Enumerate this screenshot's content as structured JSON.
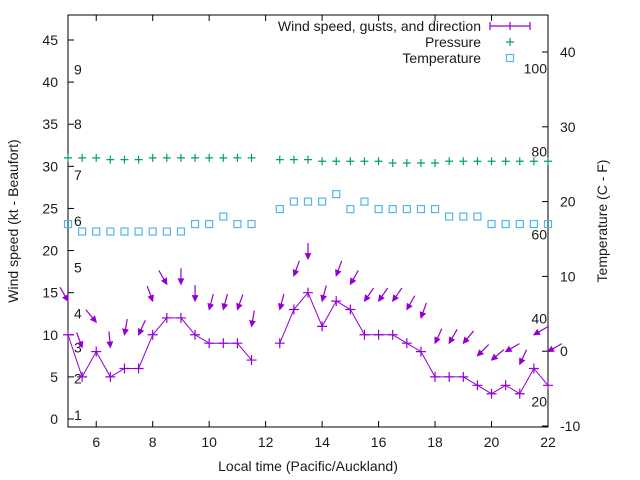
{
  "chart_data": {
    "type": "line",
    "title": "",
    "xlabel": "Local time (Pacific/Auckland)",
    "ylabel": "Wind speed (kt - Beaufort)",
    "y2label": "Temperature (C - F)",
    "xlim": [
      5,
      22
    ],
    "ylim": [
      -1,
      48
    ],
    "y2lim": [
      -10,
      45
    ],
    "x_ticks": [
      6,
      8,
      10,
      12,
      14,
      16,
      18,
      20,
      22
    ],
    "y_ticks": [
      0,
      5,
      10,
      15,
      20,
      25,
      30,
      35,
      40,
      45
    ],
    "y2_ticks": [
      -10,
      0,
      10,
      20,
      30,
      40
    ],
    "beaufort_labels": [
      {
        "label": "1",
        "kt": 0.5
      },
      {
        "label": "2",
        "kt": 4.8
      },
      {
        "label": "3",
        "kt": 8.5
      },
      {
        "label": "4",
        "kt": 12.5
      },
      {
        "label": "5",
        "kt": 18
      },
      {
        "label": "6",
        "kt": 23.5
      },
      {
        "label": "7",
        "kt": 29
      },
      {
        "label": "8",
        "kt": 35
      },
      {
        "label": "9",
        "kt": 41.5
      }
    ],
    "fahrenheit_labels": [
      {
        "label": "20",
        "celsius": -6.7
      },
      {
        "label": "40",
        "celsius": 4.4
      },
      {
        "label": "60",
        "celsius": 15.6
      },
      {
        "label": "80",
        "celsius": 26.7
      },
      {
        "label": "100",
        "celsius": 37.8
      }
    ],
    "legend": {
      "placement": "top-right",
      "entries": [
        {
          "label": "Wind speed, gusts, and direction",
          "marker": "line-plus",
          "color": "#9400d3"
        },
        {
          "label": "Pressure",
          "marker": "plus",
          "color": "#009e73"
        },
        {
          "label": "Temperature",
          "marker": "square",
          "color": "#56b4e9"
        }
      ]
    },
    "grid": false,
    "series": [
      {
        "name": "Wind speed",
        "color": "#9400d3",
        "axis": "left",
        "segments": [
          {
            "x": [
              5,
              5.5,
              6,
              6.5,
              7,
              7.5,
              8,
              8.5,
              9,
              9.5,
              10,
              10.5,
              11,
              11.5
            ],
            "y": [
              10,
              5,
              8,
              5,
              6,
              6,
              10,
              12,
              12,
              10,
              9,
              9,
              9,
              7
            ]
          },
          {
            "x": [
              12.5,
              13,
              13.5,
              14,
              14.5,
              15,
              15.5,
              16,
              16.5,
              17,
              17.5,
              18,
              18.5,
              19,
              19.5,
              20,
              20.5,
              21,
              21.5,
              22
            ],
            "y": [
              9,
              13,
              15,
              11,
              14,
              13,
              10,
              10,
              10,
              9,
              8,
              5,
              5,
              5,
              4,
              3,
              4,
              3,
              6,
              4
            ]
          }
        ]
      },
      {
        "name": "Gusts (direction arrows)",
        "color": "#9400d3",
        "axis": "left",
        "x": [
          5,
          5.5,
          6,
          6.5,
          7,
          7.5,
          8,
          8.5,
          9,
          9.5,
          10,
          10.5,
          11,
          11.5,
          12.5,
          13,
          13.5,
          14,
          14.5,
          15,
          15.5,
          16,
          16.5,
          17,
          17.5,
          18,
          18.5,
          19,
          19.5,
          20,
          20.5,
          21,
          21.5,
          22
        ],
        "y": [
          14,
          8.5,
          11.5,
          8.5,
          10,
          10,
          14,
          16,
          16,
          14,
          13,
          13,
          13,
          11,
          13,
          17,
          19,
          14,
          17,
          16,
          14,
          14,
          14,
          13,
          12,
          9,
          9,
          9,
          7.5,
          7,
          8,
          6.5,
          10,
          8
        ],
        "direction_from_deg": [
          330,
          340,
          320,
          355,
          10,
          25,
          340,
          330,
          0,
          0,
          15,
          15,
          20,
          10,
          15,
          20,
          0,
          15,
          20,
          30,
          35,
          35,
          35,
          30,
          20,
          25,
          30,
          40,
          45,
          50,
          60,
          25,
          60,
          60
        ]
      },
      {
        "name": "Pressure",
        "color": "#009e73",
        "axis": "left",
        "x": [
          5,
          5.5,
          6,
          6.5,
          7,
          7.5,
          8,
          8.5,
          9,
          9.5,
          10,
          10.5,
          11,
          11.5,
          12.5,
          13,
          13.5,
          14,
          14.5,
          15,
          15.5,
          16,
          16.5,
          17,
          17.5,
          18,
          18.5,
          19,
          19.5,
          20,
          20.5,
          21,
          21.5,
          22
        ],
        "y": [
          31,
          31,
          31,
          30.8,
          30.8,
          30.8,
          31,
          31,
          31,
          31,
          31,
          31,
          31,
          31,
          30.8,
          30.8,
          30.8,
          30.6,
          30.6,
          30.6,
          30.6,
          30.6,
          30.4,
          30.4,
          30.4,
          30.4,
          30.6,
          30.6,
          30.6,
          30.6,
          30.6,
          30.6,
          30.6,
          30.6
        ]
      },
      {
        "name": "Temperature",
        "color": "#56b4e9",
        "axis": "right",
        "x": [
          5,
          5.5,
          6,
          6.5,
          7,
          7.5,
          8,
          8.5,
          9,
          9.5,
          10,
          10.5,
          11,
          11.5,
          12.5,
          13,
          13.5,
          14,
          14.5,
          15,
          15.5,
          16,
          16.5,
          17,
          17.5,
          18,
          18.5,
          19,
          19.5,
          20,
          20.5,
          21,
          21.5,
          22
        ],
        "y": [
          17,
          16,
          16,
          16,
          16,
          16,
          16,
          16,
          16,
          17,
          17,
          18,
          17,
          17,
          19,
          20,
          20,
          20,
          21,
          19,
          20,
          19,
          19,
          19,
          19,
          19,
          18,
          18,
          18,
          17,
          17,
          17,
          17,
          17
        ]
      }
    ]
  }
}
